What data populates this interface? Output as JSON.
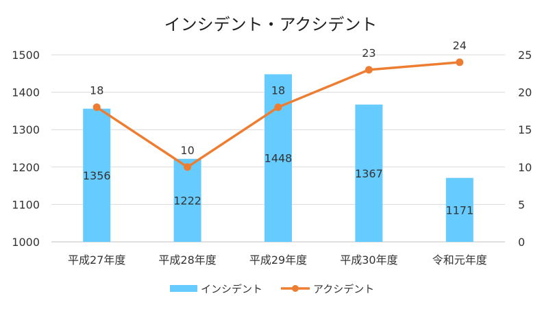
{
  "chart_data": {
    "type": "bar+line",
    "title": "インシデント・アクシデント",
    "categories": [
      "平成27年度",
      "平成28年度",
      "平成29年度",
      "平成30年度",
      "令和元年度"
    ],
    "series": [
      {
        "name": "インシデント",
        "type": "bar",
        "axis": "left",
        "color": "#66CCFF",
        "values": [
          1356,
          1222,
          1448,
          1367,
          1171
        ],
        "labels": [
          "1356",
          "1222",
          "1448",
          "1367",
          "1171"
        ]
      },
      {
        "name": "アクシデント",
        "type": "line",
        "axis": "right",
        "color": "#ED7D31",
        "values": [
          18,
          10,
          18,
          23,
          24
        ],
        "labels": [
          "18",
          "10",
          "18",
          "23",
          "24"
        ]
      }
    ],
    "y_left": {
      "min": 1000,
      "max": 1500,
      "ticks": [
        1000,
        1100,
        1200,
        1300,
        1400,
        1500
      ],
      "tick_labels": [
        "1000",
        "1100",
        "1200",
        "1300",
        "1400",
        "1500"
      ]
    },
    "y_right": {
      "min": 0,
      "max": 25,
      "ticks": [
        0,
        5,
        10,
        15,
        20,
        25
      ],
      "tick_labels": [
        "0",
        "5",
        "10",
        "15",
        "20",
        "25"
      ]
    },
    "grid": true,
    "legend_position": "bottom",
    "gridline_color": "#D9D9D9"
  }
}
